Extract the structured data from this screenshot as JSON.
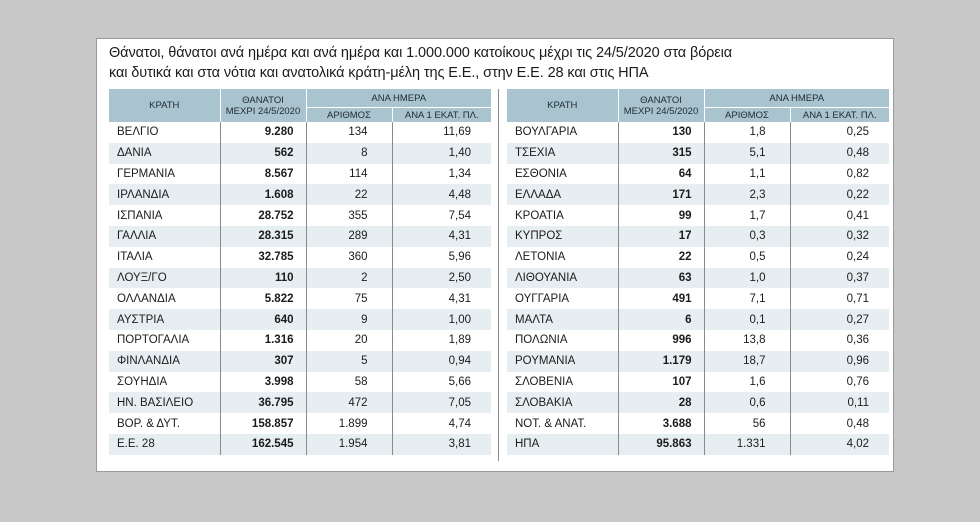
{
  "title": {
    "line1": "Θάνατοι, θάνατοι ανά ημέρα και ανά ημέρα και 1.000.000 κατοίκους μέχρι τις 24/5/2020 στα βόρεια",
    "line2": "και δυτικά και στα νότια και ανατολικά κράτη-μέλη της Ε.Ε., στην Ε.Ε. 28 και στις ΗΠΑ"
  },
  "headers": {
    "state": "ΚΡΑΤΗ",
    "deaths_line1": "ΘΑΝΑΤΟΙ",
    "deaths_line2": "ΜΕΧΡΙ 24/5/2020",
    "per_day": "ΑΝΑ ΗΜΕΡΑ",
    "count": "ΑΡΙΘΜΟΣ",
    "per_million": "ΑΝΑ 1 ΕΚΑΤ. ΠΛ."
  },
  "left_rows": [
    {
      "state": "ΒΕΛΓΙΟ",
      "deaths": "9.280",
      "per_day": "134",
      "per_million": "11,69"
    },
    {
      "state": "ΔΑΝΙΑ",
      "deaths": "562",
      "per_day": "8",
      "per_million": "1,40"
    },
    {
      "state": "ΓΕΡΜΑΝΙΑ",
      "deaths": "8.567",
      "per_day": "114",
      "per_million": "1,34"
    },
    {
      "state": "ΙΡΛΑΝΔΙΑ",
      "deaths": "1.608",
      "per_day": "22",
      "per_million": "4,48"
    },
    {
      "state": "ΙΣΠΑΝΙΑ",
      "deaths": "28.752",
      "per_day": "355",
      "per_million": "7,54"
    },
    {
      "state": "ΓΑΛΛΙΑ",
      "deaths": "28.315",
      "per_day": "289",
      "per_million": "4,31"
    },
    {
      "state": "ΙΤΑΛΙΑ",
      "deaths": "32.785",
      "per_day": "360",
      "per_million": "5,96"
    },
    {
      "state": "ΛΟΥΞ/ΓΟ",
      "deaths": "110",
      "per_day": "2",
      "per_million": "2,50"
    },
    {
      "state": "ΟΛΛΑΝΔΙΑ",
      "deaths": "5.822",
      "per_day": "75",
      "per_million": "4,31"
    },
    {
      "state": "ΑΥΣΤΡΙΑ",
      "deaths": "640",
      "per_day": "9",
      "per_million": "1,00"
    },
    {
      "state": "ΠΟΡΤΟΓΑΛΙΑ",
      "deaths": "1.316",
      "per_day": "20",
      "per_million": "1,89"
    },
    {
      "state": "ΦΙΝΛΑΝΔΙΑ",
      "deaths": "307",
      "per_day": "5",
      "per_million": "0,94"
    },
    {
      "state": "ΣΟΥΗΔΙΑ",
      "deaths": "3.998",
      "per_day": "58",
      "per_million": "5,66"
    },
    {
      "state": "ΗΝ. ΒΑΣΙΛΕΙΟ",
      "deaths": "36.795",
      "per_day": "472",
      "per_million": "7,05"
    },
    {
      "state": "ΒΟΡ. & ΔΥΤ.",
      "deaths": "158.857",
      "per_day": "1.899",
      "per_million": "4,74"
    },
    {
      "state": "Ε.Ε. 28",
      "deaths": "162.545",
      "per_day": "1.954",
      "per_million": "3,81"
    }
  ],
  "right_rows": [
    {
      "state": "ΒΟΥΛΓΑΡΙΑ",
      "deaths": "130",
      "per_day": "1,8",
      "per_million": "0,25"
    },
    {
      "state": "ΤΣΕΧΙΑ",
      "deaths": "315",
      "per_day": "5,1",
      "per_million": "0,48"
    },
    {
      "state": "ΕΣΘΟΝΙΑ",
      "deaths": "64",
      "per_day": "1,1",
      "per_million": "0,82"
    },
    {
      "state": "ΕΛΛΑΔΑ",
      "deaths": "171",
      "per_day": "2,3",
      "per_million": "0,22"
    },
    {
      "state": "ΚΡΟΑΤΙΑ",
      "deaths": "99",
      "per_day": "1,7",
      "per_million": "0,41"
    },
    {
      "state": "ΚΥΠΡΟΣ",
      "deaths": "17",
      "per_day": "0,3",
      "per_million": "0,32"
    },
    {
      "state": "ΛΕΤΟΝΙΑ",
      "deaths": "22",
      "per_day": "0,5",
      "per_million": "0,24"
    },
    {
      "state": "ΛΙΘΟΥΑΝΙΑ",
      "deaths": "63",
      "per_day": "1,0",
      "per_million": "0,37"
    },
    {
      "state": "ΟΥΓΓΑΡΙΑ",
      "deaths": "491",
      "per_day": "7,1",
      "per_million": "0,71"
    },
    {
      "state": "ΜΑΛΤΑ",
      "deaths": "6",
      "per_day": "0,1",
      "per_million": "0,27"
    },
    {
      "state": "ΠΟΛΩΝΙΑ",
      "deaths": "996",
      "per_day": "13,8",
      "per_million": "0,36"
    },
    {
      "state": "ΡΟΥΜΑΝΙΑ",
      "deaths": "1.179",
      "per_day": "18,7",
      "per_million": "0,96"
    },
    {
      "state": "ΣΛΟΒΕΝΙΑ",
      "deaths": "107",
      "per_day": "1,6",
      "per_million": "0,76"
    },
    {
      "state": "ΣΛΟΒΑΚΙΑ",
      "deaths": "28",
      "per_day": "0,6",
      "per_million": "0,11"
    },
    {
      "state": "ΝΟΤ. & ΑΝΑΤ.",
      "deaths": "3.688",
      "per_day": "56",
      "per_million": "0,48"
    },
    {
      "state": "ΗΠΑ",
      "deaths": "95.863",
      "per_day": "1.331",
      "per_million": "4,02"
    }
  ]
}
